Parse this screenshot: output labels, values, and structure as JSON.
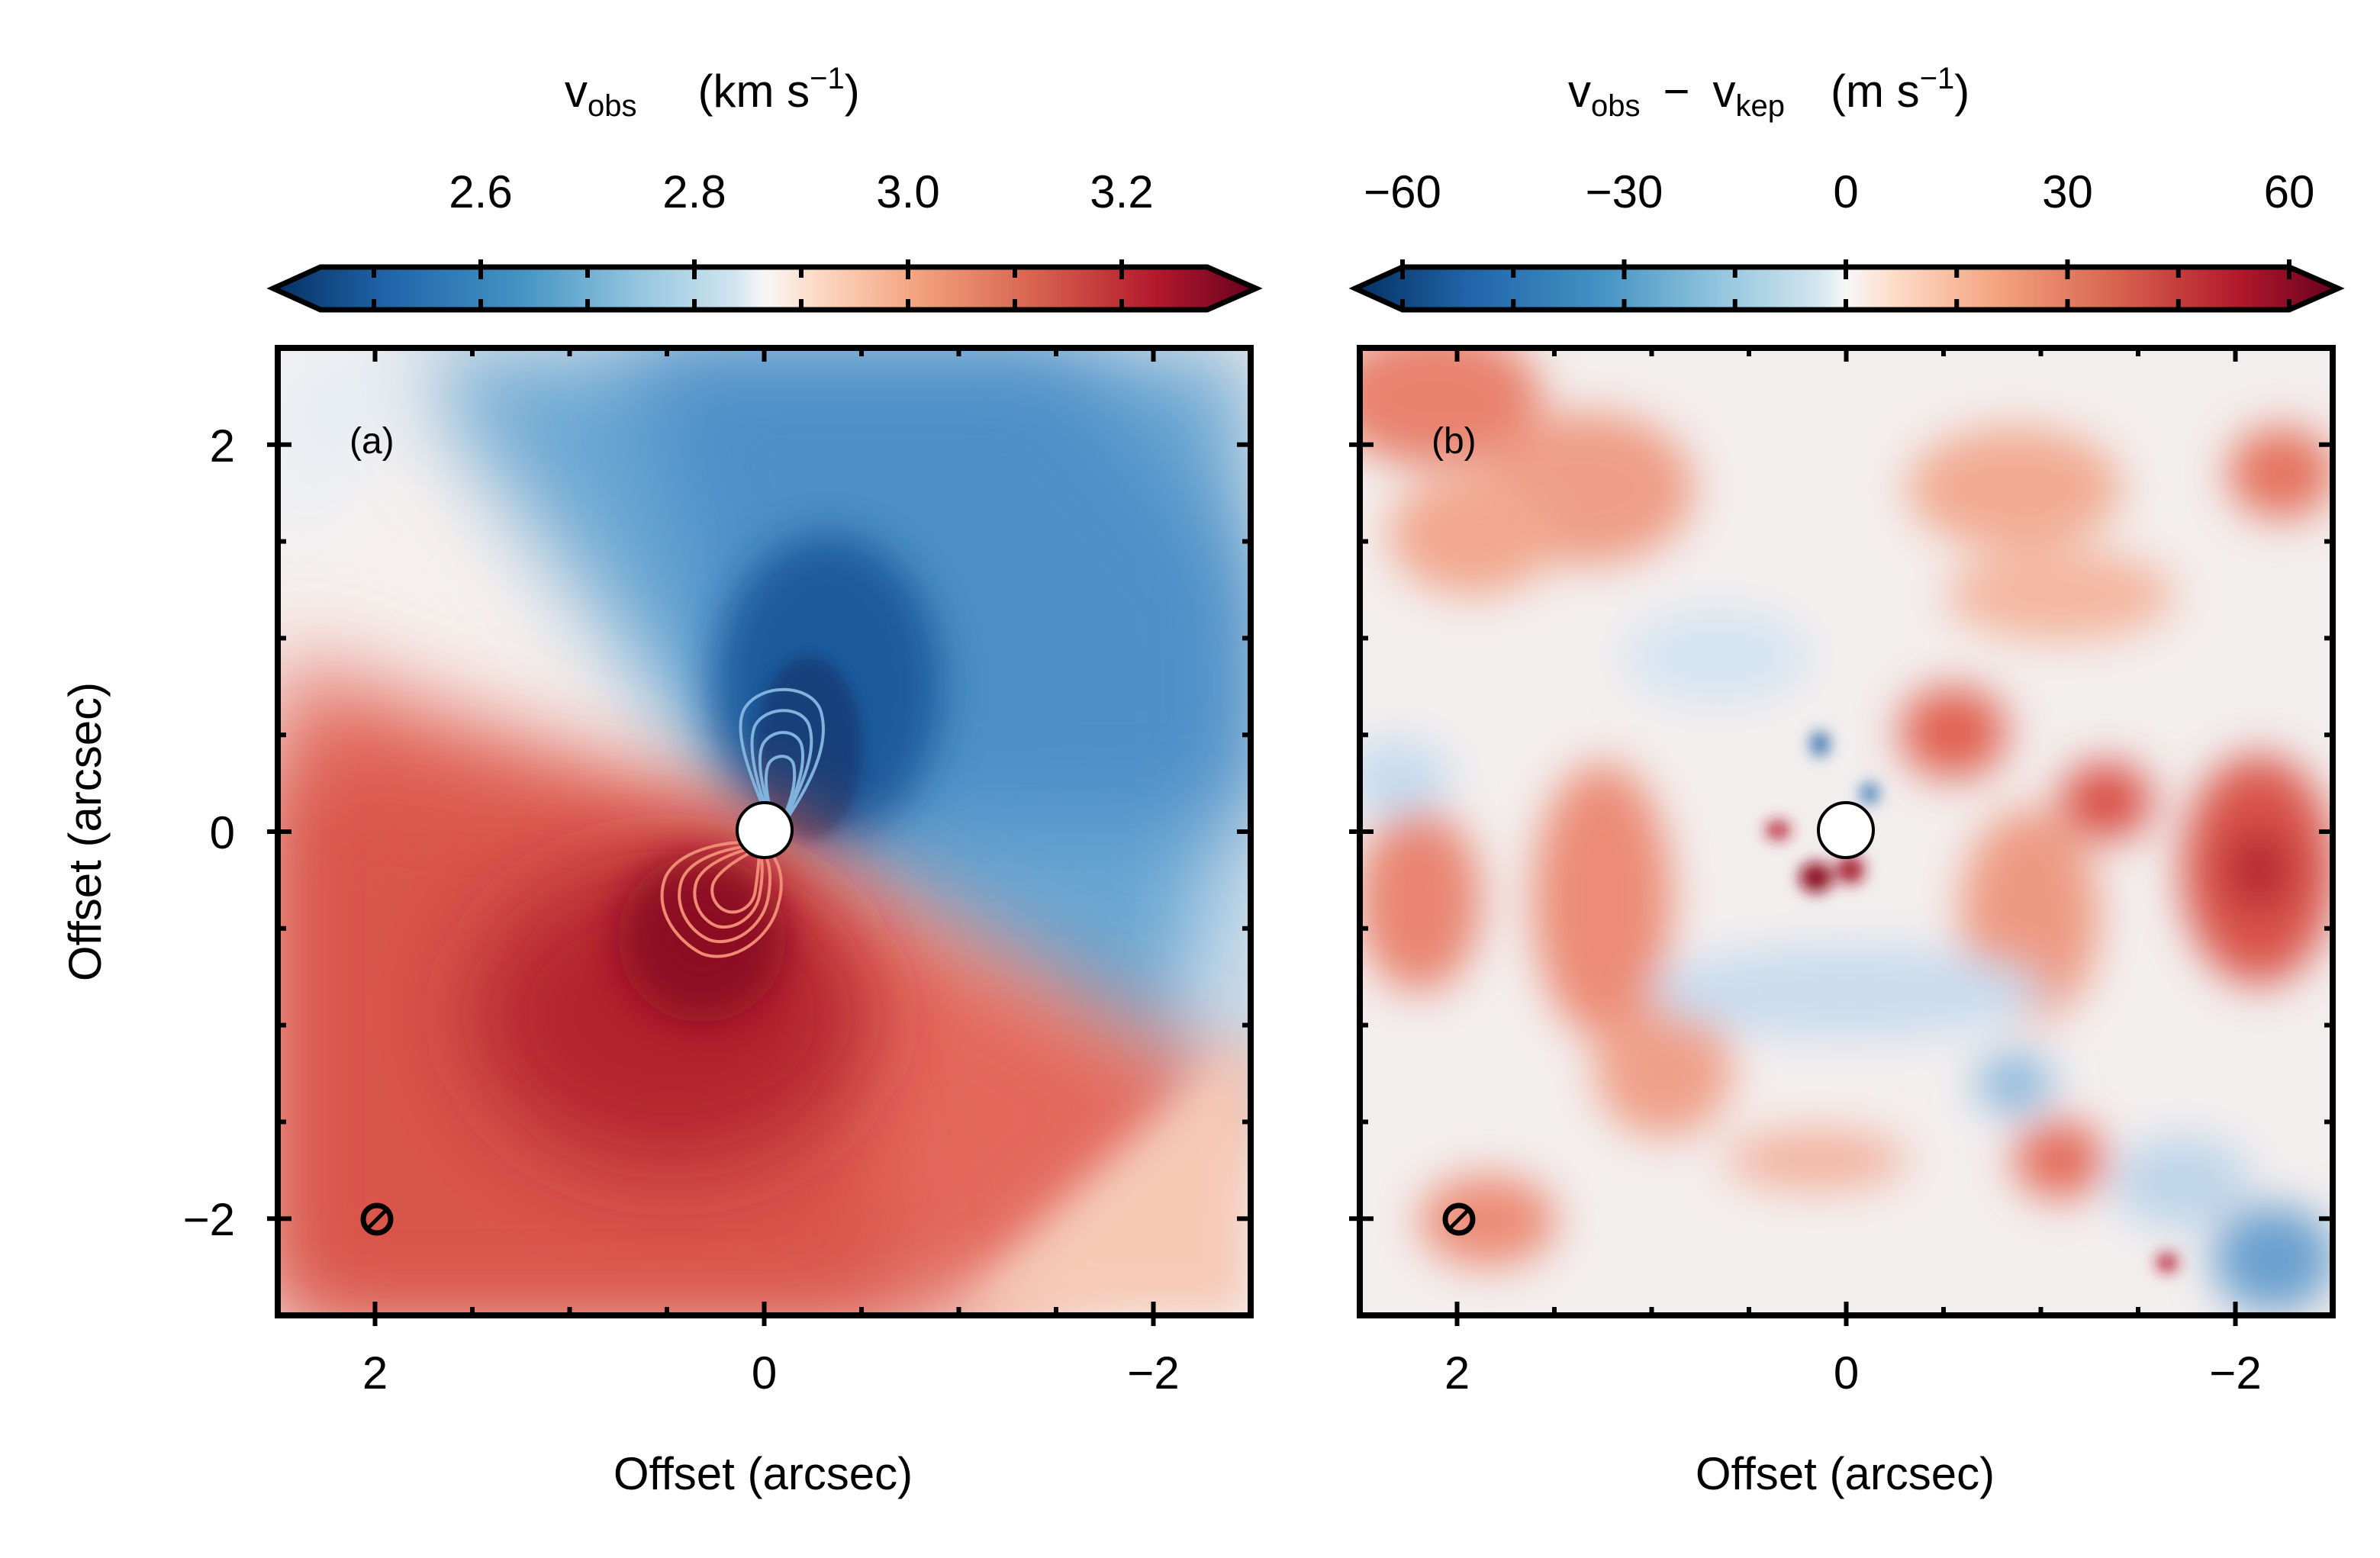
{
  "chart_data": [
    {
      "type": "heatmap",
      "panel_label": "(a)",
      "colorbar": {
        "label_main": "v",
        "label_sub": "obs",
        "label_unit": "(km s",
        "label_unit_exp": "−1",
        "label_unit_close": ")",
        "ticks": [
          2.6,
          2.8,
          3.0,
          3.2
        ],
        "tick_labels": [
          "2.6",
          "2.8",
          "3.0",
          "3.2"
        ],
        "range": [
          2.45,
          3.28
        ],
        "extend": "both",
        "colormap": "RdBu_r"
      },
      "xlabel": "Offset (arcsec)",
      "ylabel": "Offset (arcsec)",
      "xlim": [
        2.5,
        -2.5
      ],
      "ylim": [
        -2.5,
        2.5
      ],
      "xticks": [
        2,
        0,
        -2
      ],
      "xtick_labels": [
        "2",
        "0",
        "−2"
      ],
      "yticks": [
        2,
        0,
        -2
      ],
      "ytick_labels": [
        "2",
        "0",
        "−2"
      ],
      "contours": true,
      "central_mask": true,
      "beam_marker": "bottom-left"
    },
    {
      "type": "heatmap",
      "panel_label": "(b)",
      "colorbar": {
        "label_main": "v",
        "label_sub": "obs",
        "label_minus": "−",
        "label_main2": "v",
        "label_sub2": "kep",
        "label_unit": "(m s",
        "label_unit_exp": "−1",
        "label_unit_close": ")",
        "ticks": [
          -60,
          -30,
          0,
          30,
          60
        ],
        "tick_labels": [
          "−60",
          "−30",
          "0",
          "30",
          "60"
        ],
        "range": [
          -60,
          60
        ],
        "extend": "both",
        "colormap": "RdBu_r"
      },
      "xlabel": "Offset (arcsec)",
      "xlim": [
        2.5,
        -2.5
      ],
      "ylim": [
        -2.5,
        2.5
      ],
      "xticks": [
        2,
        0,
        -2
      ],
      "xtick_labels": [
        "2",
        "0",
        "−2"
      ],
      "central_mask": true,
      "beam_marker": "bottom-left"
    }
  ]
}
